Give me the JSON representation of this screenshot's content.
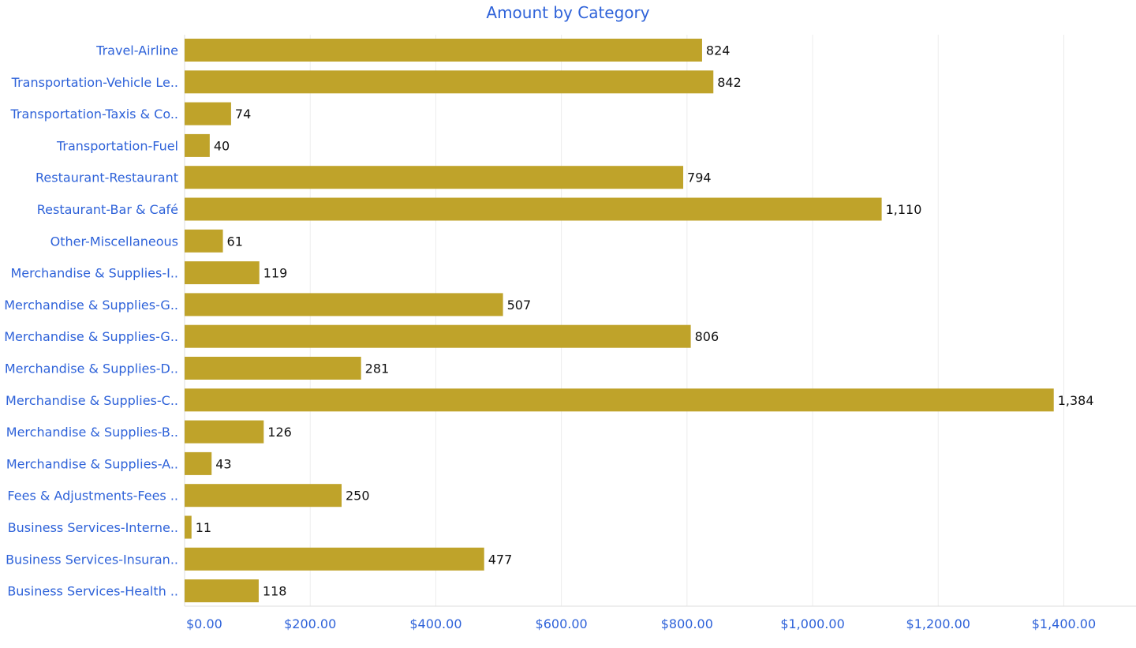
{
  "chart_data": {
    "type": "bar",
    "orientation": "horizontal",
    "title": "Amount by Category",
    "xlabel": "",
    "ylabel": "",
    "categories": [
      "Travel-Airline",
      "Transportation-Vehicle Le..",
      "Transportation-Taxis & Co..",
      "Transportation-Fuel",
      "Restaurant-Restaurant",
      "Restaurant-Bar & Café",
      "Other-Miscellaneous",
      "Merchandise & Supplies-I..",
      "Merchandise & Supplies-G..",
      "Merchandise & Supplies-G..",
      "Merchandise & Supplies-D..",
      "Merchandise & Supplies-C..",
      "Merchandise & Supplies-B..",
      "Merchandise & Supplies-A..",
      "Fees & Adjustments-Fees ..",
      "Business Services-Interne..",
      "Business Services-Insuran..",
      "Business Services-Health .."
    ],
    "values": [
      824,
      842,
      74,
      40,
      794,
      1110,
      61,
      119,
      507,
      806,
      281,
      1384,
      126,
      43,
      250,
      11,
      477,
      118
    ],
    "value_labels": [
      "824",
      "842",
      "74",
      "40",
      "794",
      "1,110",
      "61",
      "119",
      "507",
      "806",
      "281",
      "1,384",
      "126",
      "43",
      "250",
      "11",
      "477",
      "118"
    ],
    "xlim": [
      0,
      1515
    ],
    "x_ticks": [
      0,
      200,
      400,
      600,
      800,
      1000,
      1200,
      1400
    ],
    "x_tick_labels": [
      "$0.00",
      "$200.00",
      "$400.00",
      "$600.00",
      "$800.00",
      "$1,000.00",
      "$1,200.00",
      "$1,400.00"
    ],
    "grid": true,
    "legend": "none"
  },
  "colors": {
    "bar": "#bfa32a",
    "title": "#2e62d9",
    "category_label": "#2e62d9",
    "tick_label": "#2e62d9",
    "value_label": "#111111",
    "grid": "#ececec",
    "axis": "#dddddd"
  }
}
